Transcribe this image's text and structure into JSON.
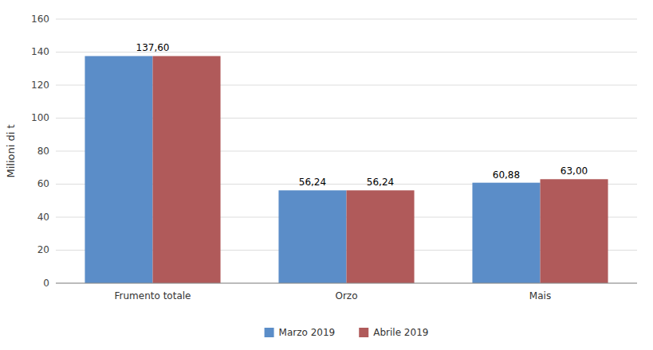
{
  "chart_data": {
    "type": "bar",
    "categories": [
      "Frumento totale",
      "Orzo",
      "Mais"
    ],
    "series": [
      {
        "name": "Marzo 2019",
        "color": "#5B8DC8",
        "values": [
          137.6,
          56.24,
          60.88
        ],
        "value_labels": [
          "137,60",
          "56,24",
          "60,88"
        ]
      },
      {
        "name": "Abrile 2019",
        "color": "#B05A5A",
        "values": [
          137.6,
          56.24,
          63.0
        ],
        "value_labels": [
          null,
          "56,24",
          "63,00"
        ]
      }
    ],
    "y_label": "Milioni di t",
    "ylim": [
      0,
      160
    ],
    "yticks": [
      0,
      20,
      40,
      60,
      80,
      100,
      120,
      140,
      160
    ],
    "grid": true,
    "legend": "bottom",
    "data_labels": true
  }
}
